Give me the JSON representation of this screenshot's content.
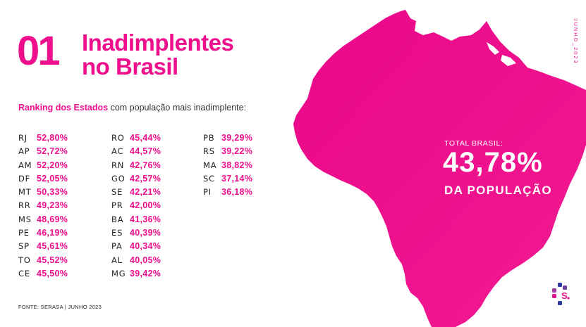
{
  "header": {
    "number": "01",
    "title_line1": "Inadimplentes",
    "title_line2": "no Brasil"
  },
  "subtitle": {
    "highlight": "Ranking dos Estados",
    "rest": " com população mais inadimplente:"
  },
  "ranking": {
    "col1": [
      {
        "uf": "RJ",
        "value": "52,80%"
      },
      {
        "uf": "AP",
        "value": "52,72%"
      },
      {
        "uf": "AM",
        "value": "52,20%"
      },
      {
        "uf": "DF",
        "value": "52,05%"
      },
      {
        "uf": "MT",
        "value": "50,33%"
      },
      {
        "uf": "RR",
        "value": "49,23%"
      },
      {
        "uf": "MS",
        "value": "48,69%"
      },
      {
        "uf": "PE",
        "value": "46,19%"
      },
      {
        "uf": "SP",
        "value": "45,61%"
      },
      {
        "uf": "TO",
        "value": "45,52%"
      },
      {
        "uf": "CE",
        "value": "45,50%"
      }
    ],
    "col2": [
      {
        "uf": "RO",
        "value": "45,44%"
      },
      {
        "uf": "AC",
        "value": "44,57%"
      },
      {
        "uf": "RN",
        "value": "42,76%"
      },
      {
        "uf": "GO",
        "value": "42,57%"
      },
      {
        "uf": "SE",
        "value": "42,21%"
      },
      {
        "uf": "PR",
        "value": "42,00%"
      },
      {
        "uf": "BA",
        "value": "41,36%"
      },
      {
        "uf": "ES",
        "value": "40,39%"
      },
      {
        "uf": "PA",
        "value": "40,34%"
      },
      {
        "uf": "AL",
        "value": "40,05%"
      },
      {
        "uf": "MG",
        "value": "39,42%"
      }
    ],
    "col3": [
      {
        "uf": "PB",
        "value": "39,29%"
      },
      {
        "uf": "RS",
        "value": "39,22%"
      },
      {
        "uf": "MA",
        "value": "38,82%"
      },
      {
        "uf": "SC",
        "value": "37,14%"
      },
      {
        "uf": "PI",
        "value": "36,18%"
      }
    ]
  },
  "total": {
    "label": "TOTAL BRASIL:",
    "value": "43,78%",
    "sub": "DA POPULAÇÃO"
  },
  "date_vertical": "JUNHO_2023",
  "source": "FONTE: SERASA |  JUNHO 2023",
  "colors": {
    "accent": "#ee0f8d",
    "map_fill": "#ec0d8b",
    "text": "#222222",
    "background": "#ffffff"
  },
  "icons": {
    "map": "brazil-map",
    "logo": "serasa-logo"
  }
}
